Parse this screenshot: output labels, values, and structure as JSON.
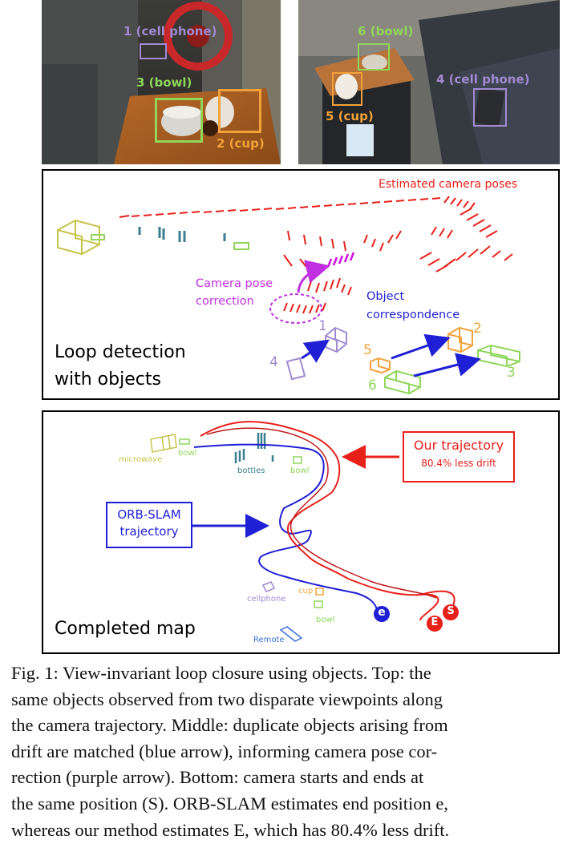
{
  "top_left": {
    "labels": {
      "cell_phone": "1 (cell phone)",
      "bowl": "3 (bowl)",
      "cup": "2 (cup)"
    }
  },
  "top_right": {
    "labels": {
      "bowl": "6 (bowl)",
      "cell_phone": "4 (cell phone)",
      "cup": "5 (cup)"
    }
  },
  "middle": {
    "estimated_poses": "Estimated camera poses",
    "pose_correction": [
      "Camera pose",
      "correction"
    ],
    "object_correspondence": [
      "Object",
      "correspondence"
    ],
    "title": [
      "Loop detection",
      "with objects"
    ],
    "numbers": {
      "n1": "1",
      "n2": "2",
      "n3": "3",
      "n4": "4",
      "n5": "5",
      "n6": "6"
    }
  },
  "bottom": {
    "title": "Completed map",
    "our_trajectory": "Our trajectory",
    "less_drift": "80.4% less drift",
    "orb_slam": [
      "ORB-SLAM",
      "trajectory"
    ],
    "objects": {
      "microwave": "microwave",
      "bowl_top": "bowl",
      "bottles": "bottles",
      "bowl_mid": "bowl",
      "cellphone": "cellphone",
      "cup": "cup",
      "bowl_low": "bowl",
      "remote": "Remote"
    },
    "markers": {
      "e": "e",
      "E": "E",
      "S": "S"
    }
  },
  "caption": {
    "lines": [
      "Fig. 1: View-invariant loop closure using objects. Top: the",
      "same objects observed from two disparate viewpoints along",
      "the camera trajectory. Middle: duplicate objects arising from",
      "drift are matched (blue arrow), informing camera pose cor-",
      "rection (purple arrow). Bottom: camera starts and ends at",
      "the same position (S). ORB-SLAM estimates end position e,",
      "whereas our method estimates E, which has 80.4% less drift."
    ]
  },
  "colors": {
    "red": "#e8201a",
    "blue": "#1f1fd6",
    "purple": "#b34ee0",
    "lavender": "#a08ad0",
    "orange": "#f2a23a",
    "green": "#8fd65a",
    "olive": "#c8c44a",
    "teal": "#3a7f8f"
  }
}
